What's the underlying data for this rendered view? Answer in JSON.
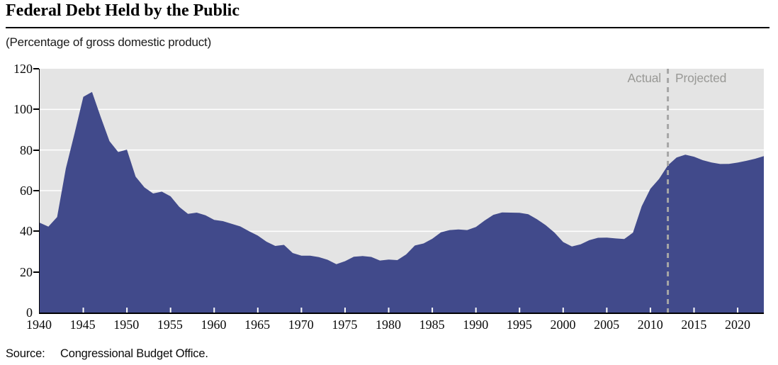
{
  "header": {
    "title": "Federal Debt Held by the Public",
    "subtitle": "(Percentage of gross domestic product)"
  },
  "annotations": {
    "actual": "Actual",
    "projected": "Projected"
  },
  "footer": {
    "source_label": "Source:",
    "source_text": "Congressional Budget Office."
  },
  "colors": {
    "area_fill": "#414A8B",
    "plot_background": "#e4e4e4",
    "gridline": "#ffffff",
    "divider": "#a6a6a6",
    "annotation_text": "#999996",
    "axis": "#000000"
  },
  "chart_data": {
    "type": "area",
    "title": "Federal Debt Held by the Public",
    "subtitle": "(Percentage of gross domestic product)",
    "xlabel": "",
    "ylabel": "Percentage of gross domestic product",
    "x_range": [
      1940,
      2023
    ],
    "ylim": [
      0,
      120
    ],
    "x_ticks": [
      1940,
      1945,
      1950,
      1955,
      1960,
      1965,
      1970,
      1975,
      1980,
      1985,
      1990,
      1995,
      2000,
      2005,
      2010,
      2015,
      2020
    ],
    "y_ticks": [
      0,
      20,
      40,
      60,
      80,
      100,
      120
    ],
    "grid": "horizontal-white",
    "divider_year": 2012,
    "divider_style": "dashed-vertical",
    "annotation_left_of_divider": "Actual",
    "annotation_right_of_divider": "Projected",
    "series": [
      {
        "name": "Federal debt held by the public (% of GDP)",
        "years": [
          1940,
          1941,
          1942,
          1943,
          1944,
          1945,
          1946,
          1947,
          1948,
          1949,
          1950,
          1951,
          1952,
          1953,
          1954,
          1955,
          1956,
          1957,
          1958,
          1959,
          1960,
          1961,
          1962,
          1963,
          1964,
          1965,
          1966,
          1967,
          1968,
          1969,
          1970,
          1971,
          1972,
          1973,
          1974,
          1975,
          1976,
          1977,
          1978,
          1979,
          1980,
          1981,
          1982,
          1983,
          1984,
          1985,
          1986,
          1987,
          1988,
          1989,
          1990,
          1991,
          1992,
          1993,
          1994,
          1995,
          1996,
          1997,
          1998,
          1999,
          2000,
          2001,
          2002,
          2003,
          2004,
          2005,
          2006,
          2007,
          2008,
          2009,
          2010,
          2011,
          2012,
          2013,
          2014,
          2015,
          2016,
          2017,
          2018,
          2019,
          2020,
          2021,
          2022,
          2023
        ],
        "values": [
          44.2,
          42.3,
          47.0,
          70.9,
          88.3,
          106.2,
          108.6,
          96.2,
          84.4,
          79.0,
          80.2,
          66.9,
          61.6,
          58.6,
          59.5,
          57.2,
          52.0,
          48.6,
          49.2,
          47.9,
          45.6,
          45.0,
          43.7,
          42.4,
          40.0,
          37.9,
          34.9,
          32.8,
          33.3,
          29.3,
          28.0,
          28.0,
          27.3,
          26.0,
          23.8,
          25.3,
          27.5,
          27.8,
          27.4,
          25.6,
          26.1,
          25.8,
          28.6,
          33.0,
          34.0,
          36.3,
          39.5,
          40.6,
          40.9,
          40.6,
          42.1,
          45.3,
          48.1,
          49.3,
          49.2,
          49.1,
          48.4,
          45.9,
          43.0,
          39.4,
          34.7,
          32.5,
          33.6,
          35.6,
          36.8,
          36.9,
          36.5,
          36.2,
          39.3,
          52.3,
          60.9,
          65.8,
          72.5,
          76.3,
          77.7,
          76.7,
          75.0,
          73.9,
          73.1,
          73.2,
          73.8,
          74.7,
          75.7,
          77.0
        ]
      }
    ]
  }
}
